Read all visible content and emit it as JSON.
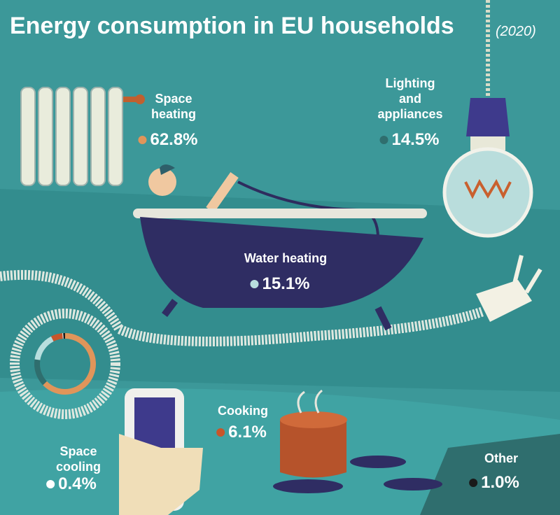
{
  "chart_data": {
    "type": "pie",
    "title": "Energy consumption in EU households",
    "subtitle": "(2020)",
    "categories": [
      "Space heating",
      "Lighting and appliances",
      "Water heating",
      "Cooking",
      "Space cooling",
      "Other"
    ],
    "values": [
      62.8,
      14.5,
      15.1,
      6.1,
      0.4,
      1.0
    ],
    "value_labels": [
      "62.8%",
      "14.5%",
      "15.1%",
      "6.1%",
      "0.4%",
      "1.0%"
    ],
    "colors": [
      "#e0955a",
      "#2f6e6e",
      "#b8dede",
      "#c9552a",
      "#ffffff",
      "#1a1a1a"
    ]
  }
}
